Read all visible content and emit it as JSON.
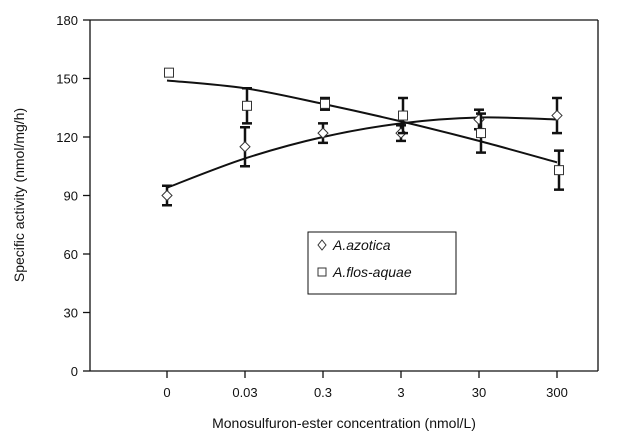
{
  "chart_data": {
    "type": "scatter",
    "xlabel": "Monosulfuron-ester concentration (nmol/L)",
    "ylabel": "Specific activity (nmol/mg/h)",
    "categories": [
      "0",
      "0.03",
      "0.3",
      "3",
      "30",
      "300"
    ],
    "yticks": [
      "0",
      "30",
      "60",
      "90",
      "120",
      "150",
      "180"
    ],
    "ylim": [
      0,
      180
    ],
    "grid": false,
    "legend_position": "center",
    "series": [
      {
        "name": "A.azotica",
        "marker": "diamond",
        "values": [
          90,
          115,
          122,
          122,
          129,
          131
        ],
        "errors": [
          5,
          10,
          5,
          4,
          5,
          9
        ],
        "trend": [
          94,
          109,
          120,
          127,
          130,
          129
        ]
      },
      {
        "name": "A.flos-aquae",
        "marker": "square",
        "values": [
          153,
          136,
          137,
          131,
          122,
          103
        ],
        "errors": [
          0,
          9,
          3,
          9,
          10,
          10
        ],
        "trend": [
          149,
          145,
          137,
          128,
          118,
          107
        ]
      }
    ],
    "colors": {
      "foreground": "#111111",
      "background": "#ffffff"
    }
  }
}
